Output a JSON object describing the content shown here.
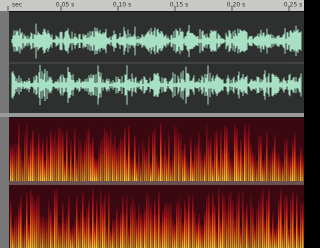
{
  "ruler": {
    "labels": [
      "sec",
      "0.05 s",
      "0.10 s",
      "0.15 s",
      "0.20 s",
      "0.25 s"
    ]
  }
}
